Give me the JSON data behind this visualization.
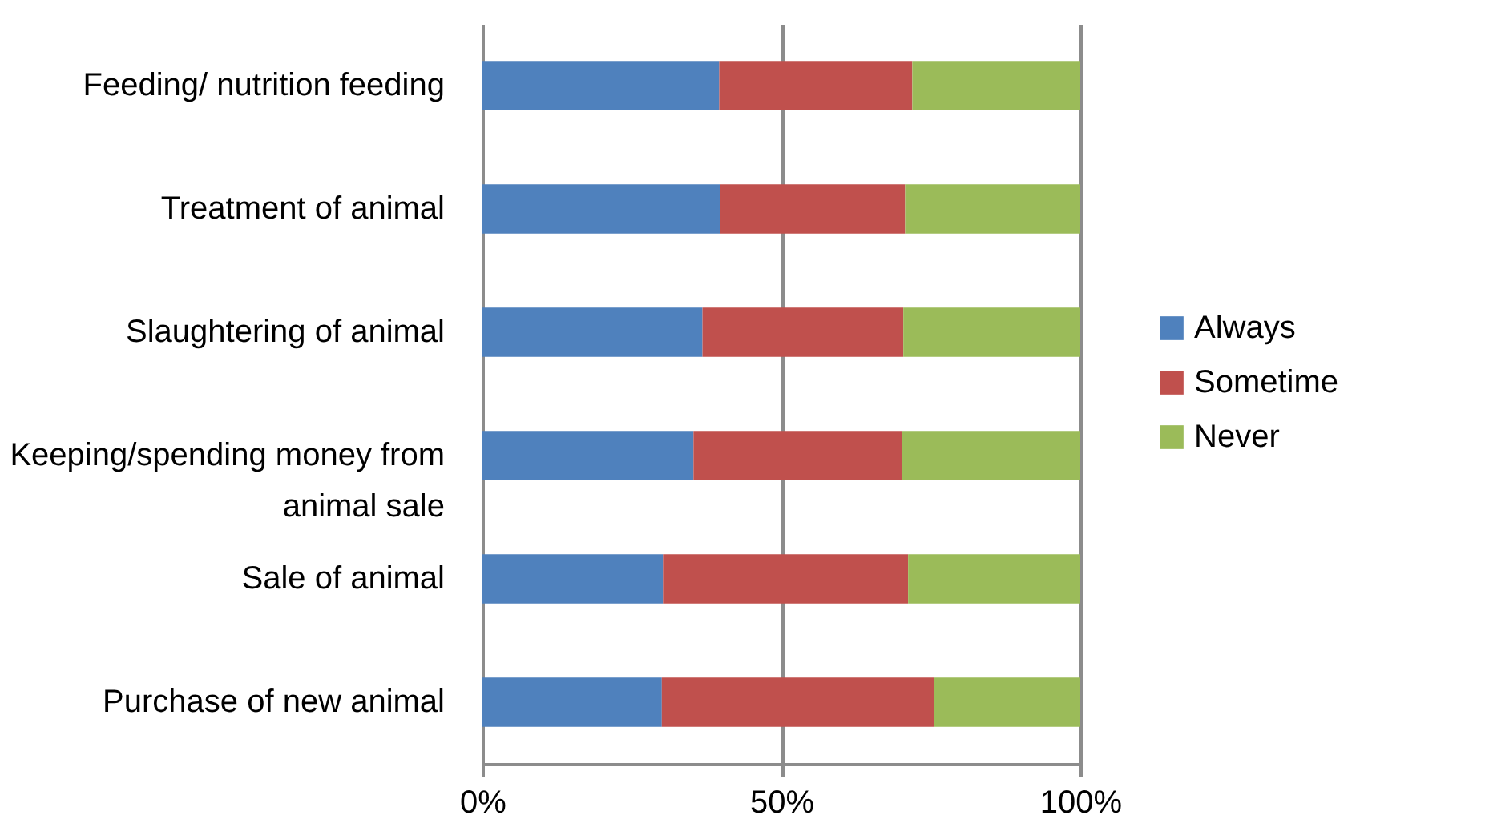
{
  "chart_data": {
    "type": "bar",
    "orientation": "horizontal",
    "stacked": true,
    "categories": [
      "Feeding/ nutrition feeding",
      "Treatment of animal",
      "Slaughtering of animal",
      "Keeping/spending money from animal sale",
      "Sale of animal",
      "Purchase of new animal"
    ],
    "series": [
      {
        "name": "Always",
        "color": "#4f81bd",
        "values": [
          39.6,
          39.8,
          36.8,
          35.3,
          30.2,
          30.0
        ]
      },
      {
        "name": "Sometime",
        "color": "#c0504d",
        "values": [
          32.3,
          30.9,
          33.6,
          34.9,
          41.0,
          45.5
        ]
      },
      {
        "name": "Never",
        "color": "#9bbb59",
        "values": [
          28.1,
          29.3,
          29.6,
          29.8,
          28.8,
          24.5
        ]
      }
    ],
    "xlim": [
      0,
      100
    ],
    "xticks": [
      {
        "value": 0,
        "label": "0%"
      },
      {
        "value": 50,
        "label": "50%"
      },
      {
        "value": 100,
        "label": "100%"
      }
    ],
    "grid": "x",
    "legend": "right"
  }
}
